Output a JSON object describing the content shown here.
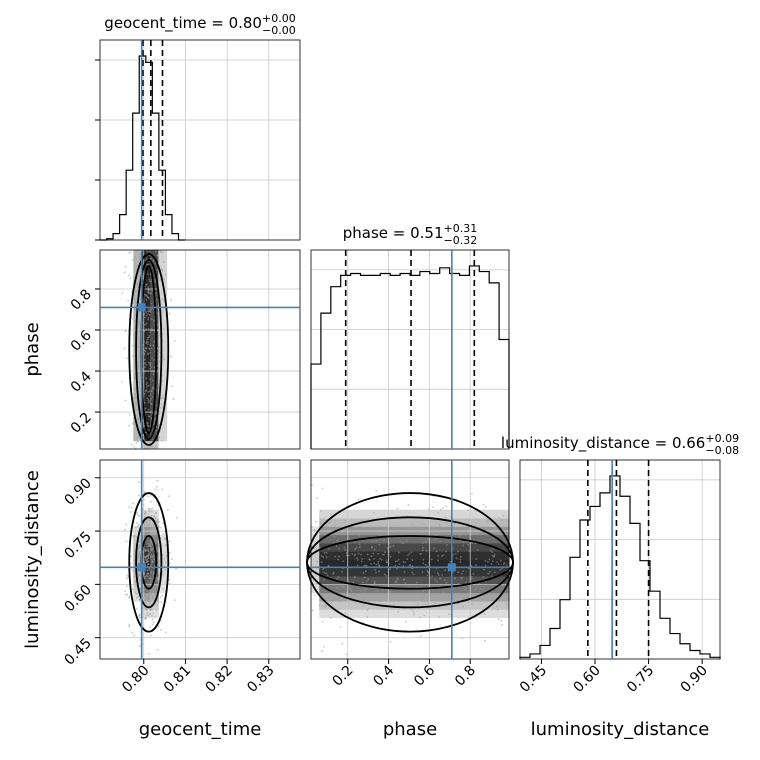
{
  "chart_data": {
    "type": "corner",
    "parameters": [
      "geocent_time",
      "phase",
      "luminosity_distance"
    ],
    "axis_labels": {
      "x": [
        "geocent_time",
        "phase",
        "luminosity_distance"
      ],
      "y": [
        "phase",
        "luminosity_distance"
      ]
    },
    "ranges": {
      "geocent_time": [
        0.7895,
        0.8375
      ],
      "phase": [
        0.02,
        0.99
      ],
      "luminosity_distance": [
        0.39,
        0.95
      ]
    },
    "ticks": {
      "geocent_time": [
        0.8,
        0.81,
        0.82,
        0.83
      ],
      "phase": [
        0.2,
        0.4,
        0.6,
        0.8
      ],
      "luminosity_distance": [
        0.45,
        0.6,
        0.75,
        0.9
      ]
    },
    "tick_labels": {
      "geocent_time": [
        "0.80",
        "0.81",
        "0.82",
        "0.83"
      ],
      "phase": [
        "0.2",
        "0.4",
        "0.6",
        "0.8"
      ],
      "luminosity_distance": [
        "0.45",
        "0.60",
        "0.75",
        "0.90"
      ]
    },
    "truths": {
      "geocent_time": 0.7995,
      "phase": 0.71,
      "luminosity_distance": 0.648
    },
    "titles": [
      {
        "param": "geocent_time",
        "value": "0.80",
        "plus": "+0.00",
        "minus": "−0.00"
      },
      {
        "param": "phase",
        "value": "0.51",
        "plus": "+0.31",
        "minus": "−0.32"
      },
      {
        "param": "luminosity_distance",
        "value": "0.66",
        "plus": "+0.09",
        "minus": "−0.08"
      }
    ],
    "quantiles": {
      "geocent_time": [
        0.7998,
        0.8017,
        0.8045
      ],
      "phase": [
        0.19,
        0.51,
        0.82
      ],
      "luminosity_distance": [
        0.58,
        0.66,
        0.75
      ]
    },
    "histograms": {
      "geocent_time": {
        "bins": [
          0.7895,
          0.79107,
          0.79264,
          0.79421,
          0.79578,
          0.79735,
          0.79892,
          0.80049,
          0.80206,
          0.80363,
          0.8052,
          0.80677,
          0.80834,
          0.80991
        ],
        "counts": [
          0,
          2,
          10,
          40,
          110,
          200,
          290,
          280,
          200,
          110,
          40,
          10,
          0
        ]
      },
      "phase": {
        "bins": [
          0.02,
          0.0685,
          0.117,
          0.1655,
          0.214,
          0.2625,
          0.311,
          0.3595,
          0.408,
          0.4565,
          0.505,
          0.5535,
          0.602,
          0.6505,
          0.699,
          0.7475,
          0.796,
          0.8445,
          0.893,
          0.9415,
          0.99
        ],
        "counts": [
          0.45,
          0.72,
          0.86,
          0.92,
          0.93,
          0.92,
          0.92,
          0.93,
          0.92,
          0.93,
          0.92,
          0.94,
          0.93,
          0.96,
          0.93,
          0.92,
          0.97,
          0.94,
          0.88,
          0.58
        ]
      },
      "luminosity_distance": {
        "bins": [
          0.39,
          0.418,
          0.446,
          0.474,
          0.502,
          0.53,
          0.558,
          0.586,
          0.614,
          0.642,
          0.67,
          0.698,
          0.726,
          0.754,
          0.782,
          0.81,
          0.838,
          0.866,
          0.894,
          0.922,
          0.95
        ],
        "counts": [
          1,
          3,
          8,
          18,
          35,
          60,
          82,
          90,
          98,
          108,
          96,
          80,
          58,
          40,
          24,
          15,
          9,
          5,
          3,
          1
        ]
      }
    },
    "credible_levels": [
      0.39,
      0.86,
      0.99
    ]
  }
}
